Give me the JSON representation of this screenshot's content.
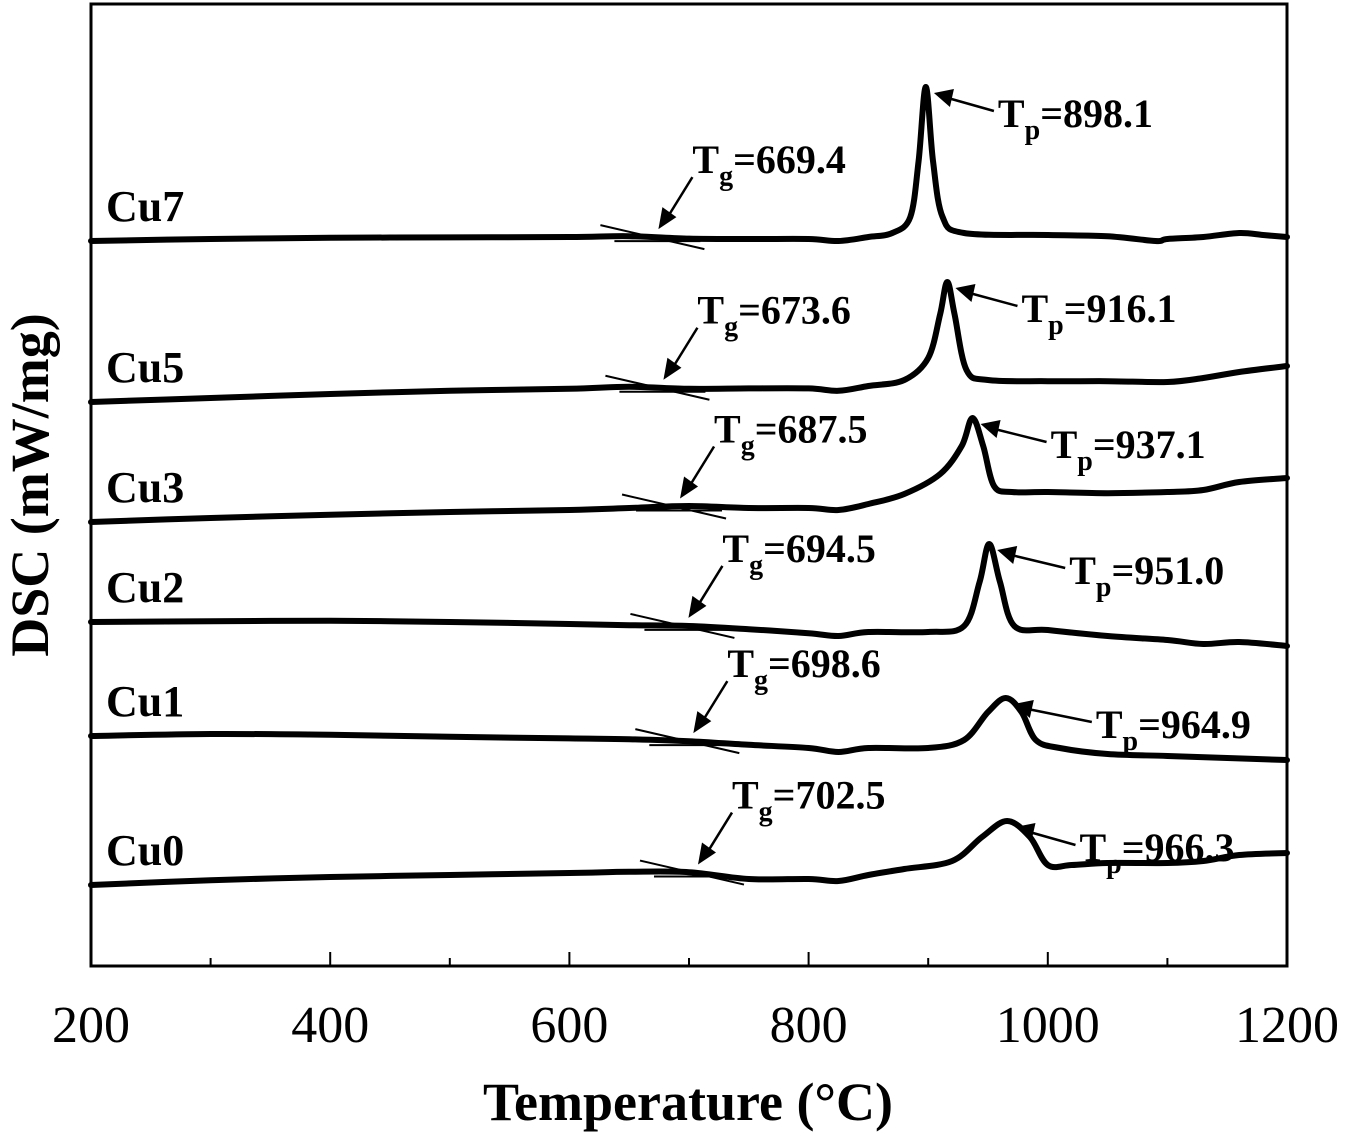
{
  "chart_data": {
    "type": "line",
    "xlabel": "Temperature (°C)",
    "ylabel": "DSC (mW/mg)",
    "xlim": [
      200,
      1200
    ],
    "xticks": [
      200,
      400,
      600,
      800,
      1000,
      1200
    ],
    "grid": false,
    "series": [
      {
        "name": "Cu7",
        "Tg": {
          "sub": "g",
          "value": "=669.4",
          "x": 669.4
        },
        "Tp": {
          "sub": "p",
          "value": "=898.1",
          "x": 898.1
        },
        "x": [
          200,
          300,
          400,
          500,
          600,
          650,
          700,
          750,
          800,
          825,
          850,
          870,
          885,
          892,
          898,
          904,
          912,
          930,
          1000,
          1050,
          1090,
          1100,
          1130,
          1160,
          1180,
          1200
        ],
        "y": [
          0,
          0.05,
          0.08,
          0.09,
          0.1,
          0.12,
          0.06,
          0.05,
          0.05,
          0.0,
          0.1,
          0.2,
          0.6,
          2.0,
          3.85,
          2.0,
          0.6,
          0.2,
          0.15,
          0.12,
          0.0,
          0.05,
          0.1,
          0.2,
          0.15,
          0.1
        ]
      },
      {
        "name": "Cu5",
        "Tg": {
          "sub": "g",
          "value": "=673.6",
          "x": 673.6
        },
        "Tp": {
          "sub": "p",
          "value": "=916.1",
          "x": 916.1
        },
        "x": [
          200,
          300,
          400,
          500,
          600,
          650,
          700,
          750,
          800,
          825,
          850,
          880,
          900,
          910,
          916,
          922,
          932,
          950,
          1000,
          1050,
          1100,
          1130,
          1160,
          1200
        ],
        "y": [
          0,
          0.1,
          0.2,
          0.28,
          0.33,
          0.38,
          0.33,
          0.34,
          0.34,
          0.28,
          0.4,
          0.55,
          1.1,
          2.2,
          3.0,
          2.2,
          0.8,
          0.55,
          0.52,
          0.52,
          0.5,
          0.6,
          0.75,
          0.9
        ]
      },
      {
        "name": "Cu3",
        "Tg": {
          "sub": "g",
          "value": "=687.5",
          "x": 687.5
        },
        "Tp": {
          "sub": "p",
          "value": "=937.1",
          "x": 937.1
        },
        "x": [
          200,
          300,
          400,
          500,
          600,
          650,
          700,
          750,
          800,
          825,
          850,
          880,
          910,
          928,
          937,
          946,
          955,
          970,
          1000,
          1050,
          1100,
          1130,
          1160,
          1200
        ],
        "y": [
          0,
          0.1,
          0.18,
          0.25,
          0.3,
          0.35,
          0.4,
          0.35,
          0.35,
          0.3,
          0.45,
          0.7,
          1.2,
          1.9,
          2.6,
          1.9,
          0.9,
          0.75,
          0.75,
          0.72,
          0.75,
          0.8,
          1.0,
          1.1
        ]
      },
      {
        "name": "Cu2",
        "Tg": {
          "sub": "g",
          "value": "=694.5",
          "x": 694.5
        },
        "Tp": {
          "sub": "p",
          "value": "=951.0",
          "x": 951.0
        },
        "x": [
          200,
          300,
          400,
          500,
          600,
          650,
          700,
          750,
          800,
          825,
          850,
          900,
          930,
          943,
          951,
          960,
          972,
          1000,
          1050,
          1100,
          1130,
          1160,
          1200
        ],
        "y": [
          0,
          0.02,
          0.03,
          0.0,
          -0.05,
          -0.08,
          -0.1,
          -0.18,
          -0.28,
          -0.35,
          -0.25,
          -0.25,
          -0.1,
          1.0,
          1.95,
          1.0,
          -0.1,
          -0.2,
          -0.35,
          -0.45,
          -0.55,
          -0.5,
          -0.6
        ]
      },
      {
        "name": "Cu1",
        "Tg": {
          "sub": "g",
          "value": "=698.6",
          "x": 698.6
        },
        "Tp": {
          "sub": "p",
          "value": "=964.9",
          "x": 964.9
        },
        "x": [
          200,
          300,
          400,
          500,
          600,
          650,
          700,
          750,
          800,
          825,
          850,
          900,
          930,
          950,
          964.9,
          978,
          990,
          1010,
          1050,
          1100,
          1150,
          1200
        ],
        "y": [
          0,
          0.05,
          0.03,
          -0.02,
          -0.06,
          -0.08,
          -0.13,
          -0.22,
          -0.3,
          -0.4,
          -0.3,
          -0.3,
          -0.1,
          0.6,
          0.95,
          0.6,
          -0.1,
          -0.3,
          -0.45,
          -0.5,
          -0.55,
          -0.6
        ]
      },
      {
        "name": "Cu0",
        "Tg": {
          "sub": "g",
          "value": "=702.5",
          "x": 702.5
        },
        "Tp": {
          "sub": "p",
          "value": "=966.3",
          "x": 966.3
        },
        "x": [
          200,
          300,
          400,
          500,
          600,
          650,
          700,
          750,
          800,
          825,
          850,
          880,
          920,
          945,
          966,
          985,
          1000,
          1020,
          1050,
          1100,
          1130,
          1160,
          1200
        ],
        "y": [
          0,
          0.12,
          0.2,
          0.25,
          0.3,
          0.33,
          0.32,
          0.15,
          0.15,
          0.1,
          0.25,
          0.4,
          0.6,
          1.2,
          1.6,
          1.2,
          0.5,
          0.5,
          0.55,
          0.55,
          0.6,
          0.75,
          0.8
        ]
      }
    ]
  }
}
